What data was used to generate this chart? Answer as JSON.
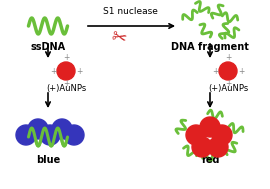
{
  "bg_color": "#ffffff",
  "arrow_color": "#000000",
  "dna_wave_color": "#6abf3a",
  "nanoparticle_red": "#e02020",
  "nanoparticle_blue": "#3535bb",
  "plus_color": "#888888",
  "scissors_color": "#cc2222",
  "title_nuclease": "S1 nuclease",
  "label_ssdna": "ssDNA",
  "label_fragment": "DNA fragment",
  "label_aunps": "(+)AuNPs",
  "label_blue": "blue",
  "label_red": "red",
  "figwidth": 2.7,
  "figheight": 1.89,
  "dpi": 100
}
